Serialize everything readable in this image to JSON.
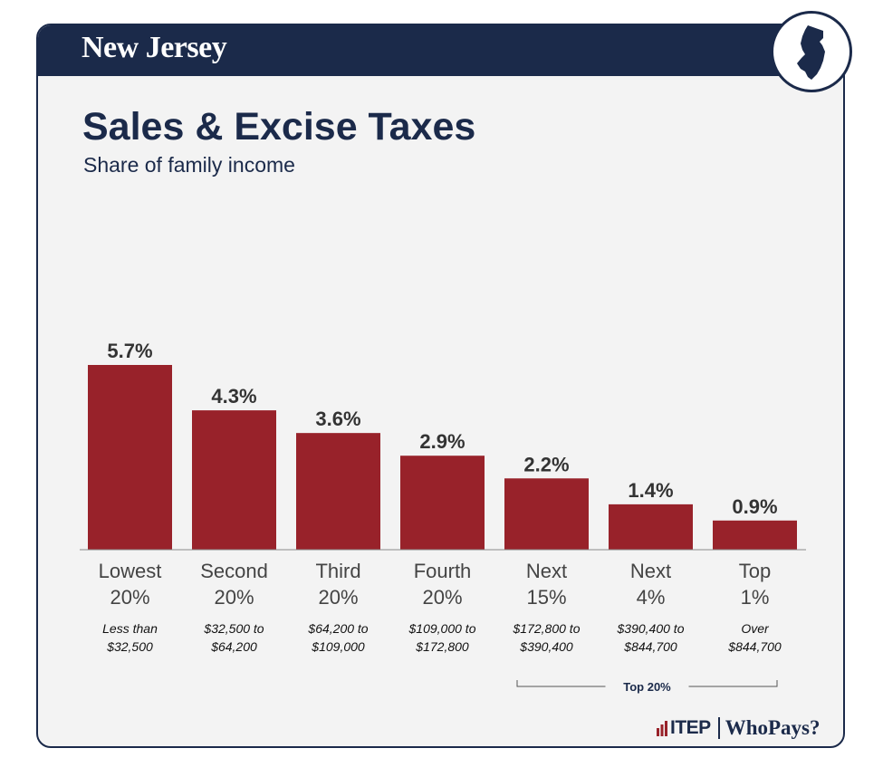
{
  "header": {
    "state_name": "New Jersey",
    "state_icon": "new-jersey-map-icon"
  },
  "chart_data": {
    "type": "bar",
    "title": "Sales & Excise Taxes",
    "subtitle": "Share of family income",
    "xlabel": "",
    "ylabel": "",
    "ylim": [
      0,
      5.7
    ],
    "grid": false,
    "bar_color": "#98222a",
    "value_suffix": "%",
    "categories": [
      {
        "name_line1": "Lowest",
        "name_line2": "20%",
        "range_line1": "Less than",
        "range_line2": "$32,500"
      },
      {
        "name_line1": "Second",
        "name_line2": "20%",
        "range_line1": "$32,500 to",
        "range_line2": "$64,200"
      },
      {
        "name_line1": "Third",
        "name_line2": "20%",
        "range_line1": "$64,200 to",
        "range_line2": "$109,000"
      },
      {
        "name_line1": "Fourth",
        "name_line2": "20%",
        "range_line1": "$109,000 to",
        "range_line2": "$172,800"
      },
      {
        "name_line1": "Next",
        "name_line2": "15%",
        "range_line1": "$172,800 to",
        "range_line2": "$390,400"
      },
      {
        "name_line1": "Next",
        "name_line2": "4%",
        "range_line1": "$390,400 to",
        "range_line2": "$844,700"
      },
      {
        "name_line1": "Top",
        "name_line2": "1%",
        "range_line1": "Over",
        "range_line2": "$844,700"
      }
    ],
    "values": [
      5.7,
      4.3,
      3.6,
      2.9,
      2.2,
      1.4,
      0.9
    ],
    "bracket": {
      "label": "Top 20%",
      "from_index": 4,
      "to_index": 6
    }
  },
  "colors": {
    "navy": "#1b2a4a",
    "bar": "#98222a",
    "panel": "#f3f3f3"
  },
  "footer": {
    "org_logo": "ITEP",
    "org_logo_icon": "itep-bars-icon",
    "product_logo": "WhoPays?"
  }
}
